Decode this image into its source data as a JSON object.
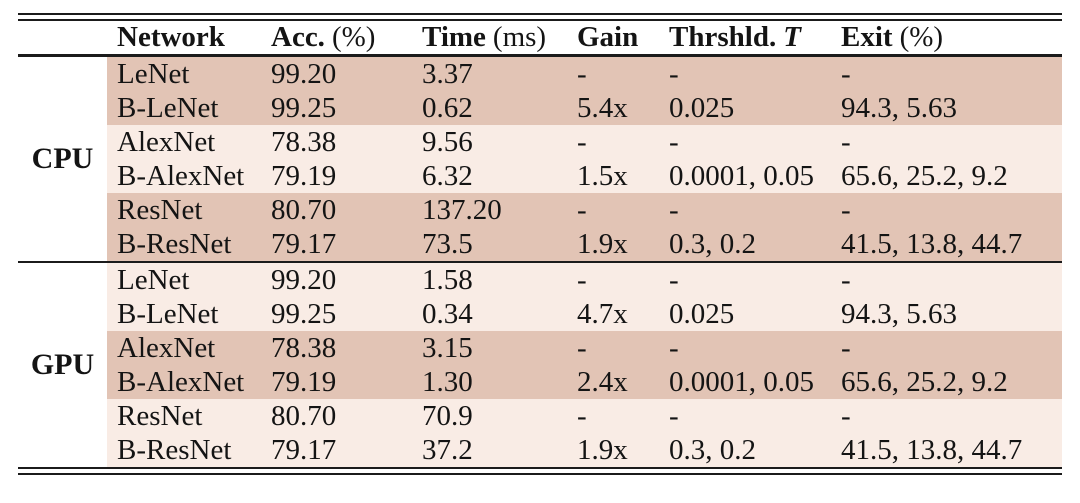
{
  "header": {
    "network": "Network",
    "acc_bold": "Acc.",
    "acc_unit": "(%)",
    "time_bold": "Time",
    "time_unit": "(ms)",
    "gain": "Gain",
    "thrshld_bold": "Thrshld.",
    "thrshld_math": "T",
    "exit_bold": "Exit",
    "exit_unit": "(%)"
  },
  "sections": [
    {
      "label": "CPU",
      "rows": [
        {
          "network": "LeNet",
          "acc": "99.20",
          "time": "3.37",
          "gain": "-",
          "thrshld": "-",
          "exit": "-"
        },
        {
          "network": "B-LeNet",
          "acc": "99.25",
          "time": "0.62",
          "gain": "5.4x",
          "thrshld": "0.025",
          "exit": "94.3, 5.63"
        },
        {
          "network": "AlexNet",
          "acc": "78.38",
          "time": "9.56",
          "gain": "-",
          "thrshld": "-",
          "exit": "-"
        },
        {
          "network": "B-AlexNet",
          "acc": "79.19",
          "time": "6.32",
          "gain": "1.5x",
          "thrshld": "0.0001, 0.05",
          "exit": "65.6, 25.2, 9.2"
        },
        {
          "network": "ResNet",
          "acc": "80.70",
          "time": "137.20",
          "gain": "-",
          "thrshld": "-",
          "exit": "-"
        },
        {
          "network": "B-ResNet",
          "acc": "79.17",
          "time": "73.5",
          "gain": "1.9x",
          "thrshld": "0.3, 0.2",
          "exit": "41.5, 13.8, 44.7"
        }
      ]
    },
    {
      "label": "GPU",
      "rows": [
        {
          "network": "LeNet",
          "acc": "99.20",
          "time": "1.58",
          "gain": "-",
          "thrshld": "-",
          "exit": "-"
        },
        {
          "network": "B-LeNet",
          "acc": "99.25",
          "time": "0.34",
          "gain": "4.7x",
          "thrshld": "0.025",
          "exit": "94.3, 5.63"
        },
        {
          "network": "AlexNet",
          "acc": "78.38",
          "time": "3.15",
          "gain": "-",
          "thrshld": "-",
          "exit": "-"
        },
        {
          "network": "B-AlexNet",
          "acc": "79.19",
          "time": "1.30",
          "gain": "2.4x",
          "thrshld": "0.0001, 0.05",
          "exit": "65.6, 25.2, 9.2"
        },
        {
          "network": "ResNet",
          "acc": "80.70",
          "time": "70.9",
          "gain": "-",
          "thrshld": "-",
          "exit": "-"
        },
        {
          "network": "B-ResNet",
          "acc": "79.17",
          "time": "37.2",
          "gain": "1.9x",
          "thrshld": "0.3, 0.2",
          "exit": "41.5, 13.8, 44.7"
        }
      ]
    }
  ],
  "colors": {
    "row_dark": "#e2c4b5",
    "row_light": "#f9ece5",
    "rule": "#1b1b1b",
    "text": "#141414"
  }
}
